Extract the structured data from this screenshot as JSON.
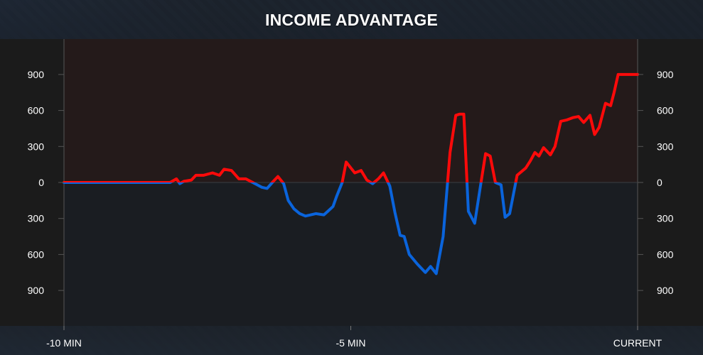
{
  "colors": {
    "positive": "#ff0a0a",
    "negative": "#0a64dc",
    "positive_fill": "#241a1a",
    "negative_fill": "#1a1d22",
    "axis": "#555555",
    "text": "#ffffff"
  },
  "chart_data": {
    "type": "line",
    "title": "INCOME ADVANTAGE",
    "xlabel": "",
    "ylabel": "",
    "ylim": [
      -1200,
      1200
    ],
    "xlim": [
      -10,
      0
    ],
    "y_ticks": [
      900,
      600,
      300,
      0,
      -300,
      -600,
      -900
    ],
    "y_tick_labels": [
      "900",
      "600",
      "300",
      "0",
      "300",
      "600",
      "900"
    ],
    "x_ticks": [
      -10,
      -5,
      0
    ],
    "x_tick_labels": [
      "-10 MIN",
      "-5 MIN",
      "CURRENT"
    ],
    "grid": false,
    "series": [
      {
        "x": [
          -10,
          -8.15,
          -8.04,
          -7.98,
          -7.91,
          -7.78,
          -7.7,
          -7.57,
          -7.41,
          -7.29,
          -7.21,
          -7.08,
          -6.95,
          -6.83,
          -6.63,
          -6.55,
          -6.46,
          -6.33,
          -6.27,
          -6.17,
          -6.09,
          -5.99,
          -5.89,
          -5.79,
          -5.61,
          -5.47,
          -5.4,
          -5.31,
          -5.25,
          -5.15,
          -5.08,
          -4.93,
          -4.82,
          -4.72,
          -4.62,
          -4.52,
          -4.43,
          -4.32,
          -4.23,
          -4.14,
          -4.07,
          -3.98,
          -3.84,
          -3.7,
          -3.61,
          -3.51,
          -3.39,
          -3.27,
          -3.17,
          -3.1,
          -3.03,
          -2.95,
          -2.84,
          -2.73,
          -2.65,
          -2.57,
          -2.48,
          -2.38,
          -2.31,
          -2.23,
          -2.1,
          -1.95,
          -1.87,
          -1.79,
          -1.72,
          -1.64,
          -1.52,
          -1.44,
          -1.34,
          -1.24,
          -1.13,
          -1.03,
          -0.94,
          -0.83,
          -0.75,
          -0.67,
          -0.56,
          -0.47,
          -0.41,
          -0.34,
          -0.25,
          -0.17,
          -0.08,
          0
        ],
        "values": [
          0,
          0,
          30,
          -10,
          10,
          20,
          60,
          60,
          80,
          60,
          110,
          100,
          30,
          30,
          -20,
          -40,
          -50,
          20,
          50,
          -10,
          -150,
          -220,
          -260,
          -280,
          -260,
          -270,
          -240,
          -200,
          -120,
          0,
          170,
          80,
          100,
          20,
          -10,
          30,
          80,
          -30,
          -250,
          -440,
          -450,
          -600,
          -680,
          -750,
          -700,
          -760,
          -450,
          250,
          560,
          570,
          570,
          -240,
          -340,
          0,
          240,
          220,
          0,
          -20,
          -290,
          -260,
          60,
          120,
          180,
          250,
          220,
          290,
          230,
          300,
          510,
          520,
          540,
          550,
          500,
          560,
          400,
          460,
          660,
          640,
          750,
          900,
          900,
          900,
          900,
          900
        ]
      }
    ]
  }
}
